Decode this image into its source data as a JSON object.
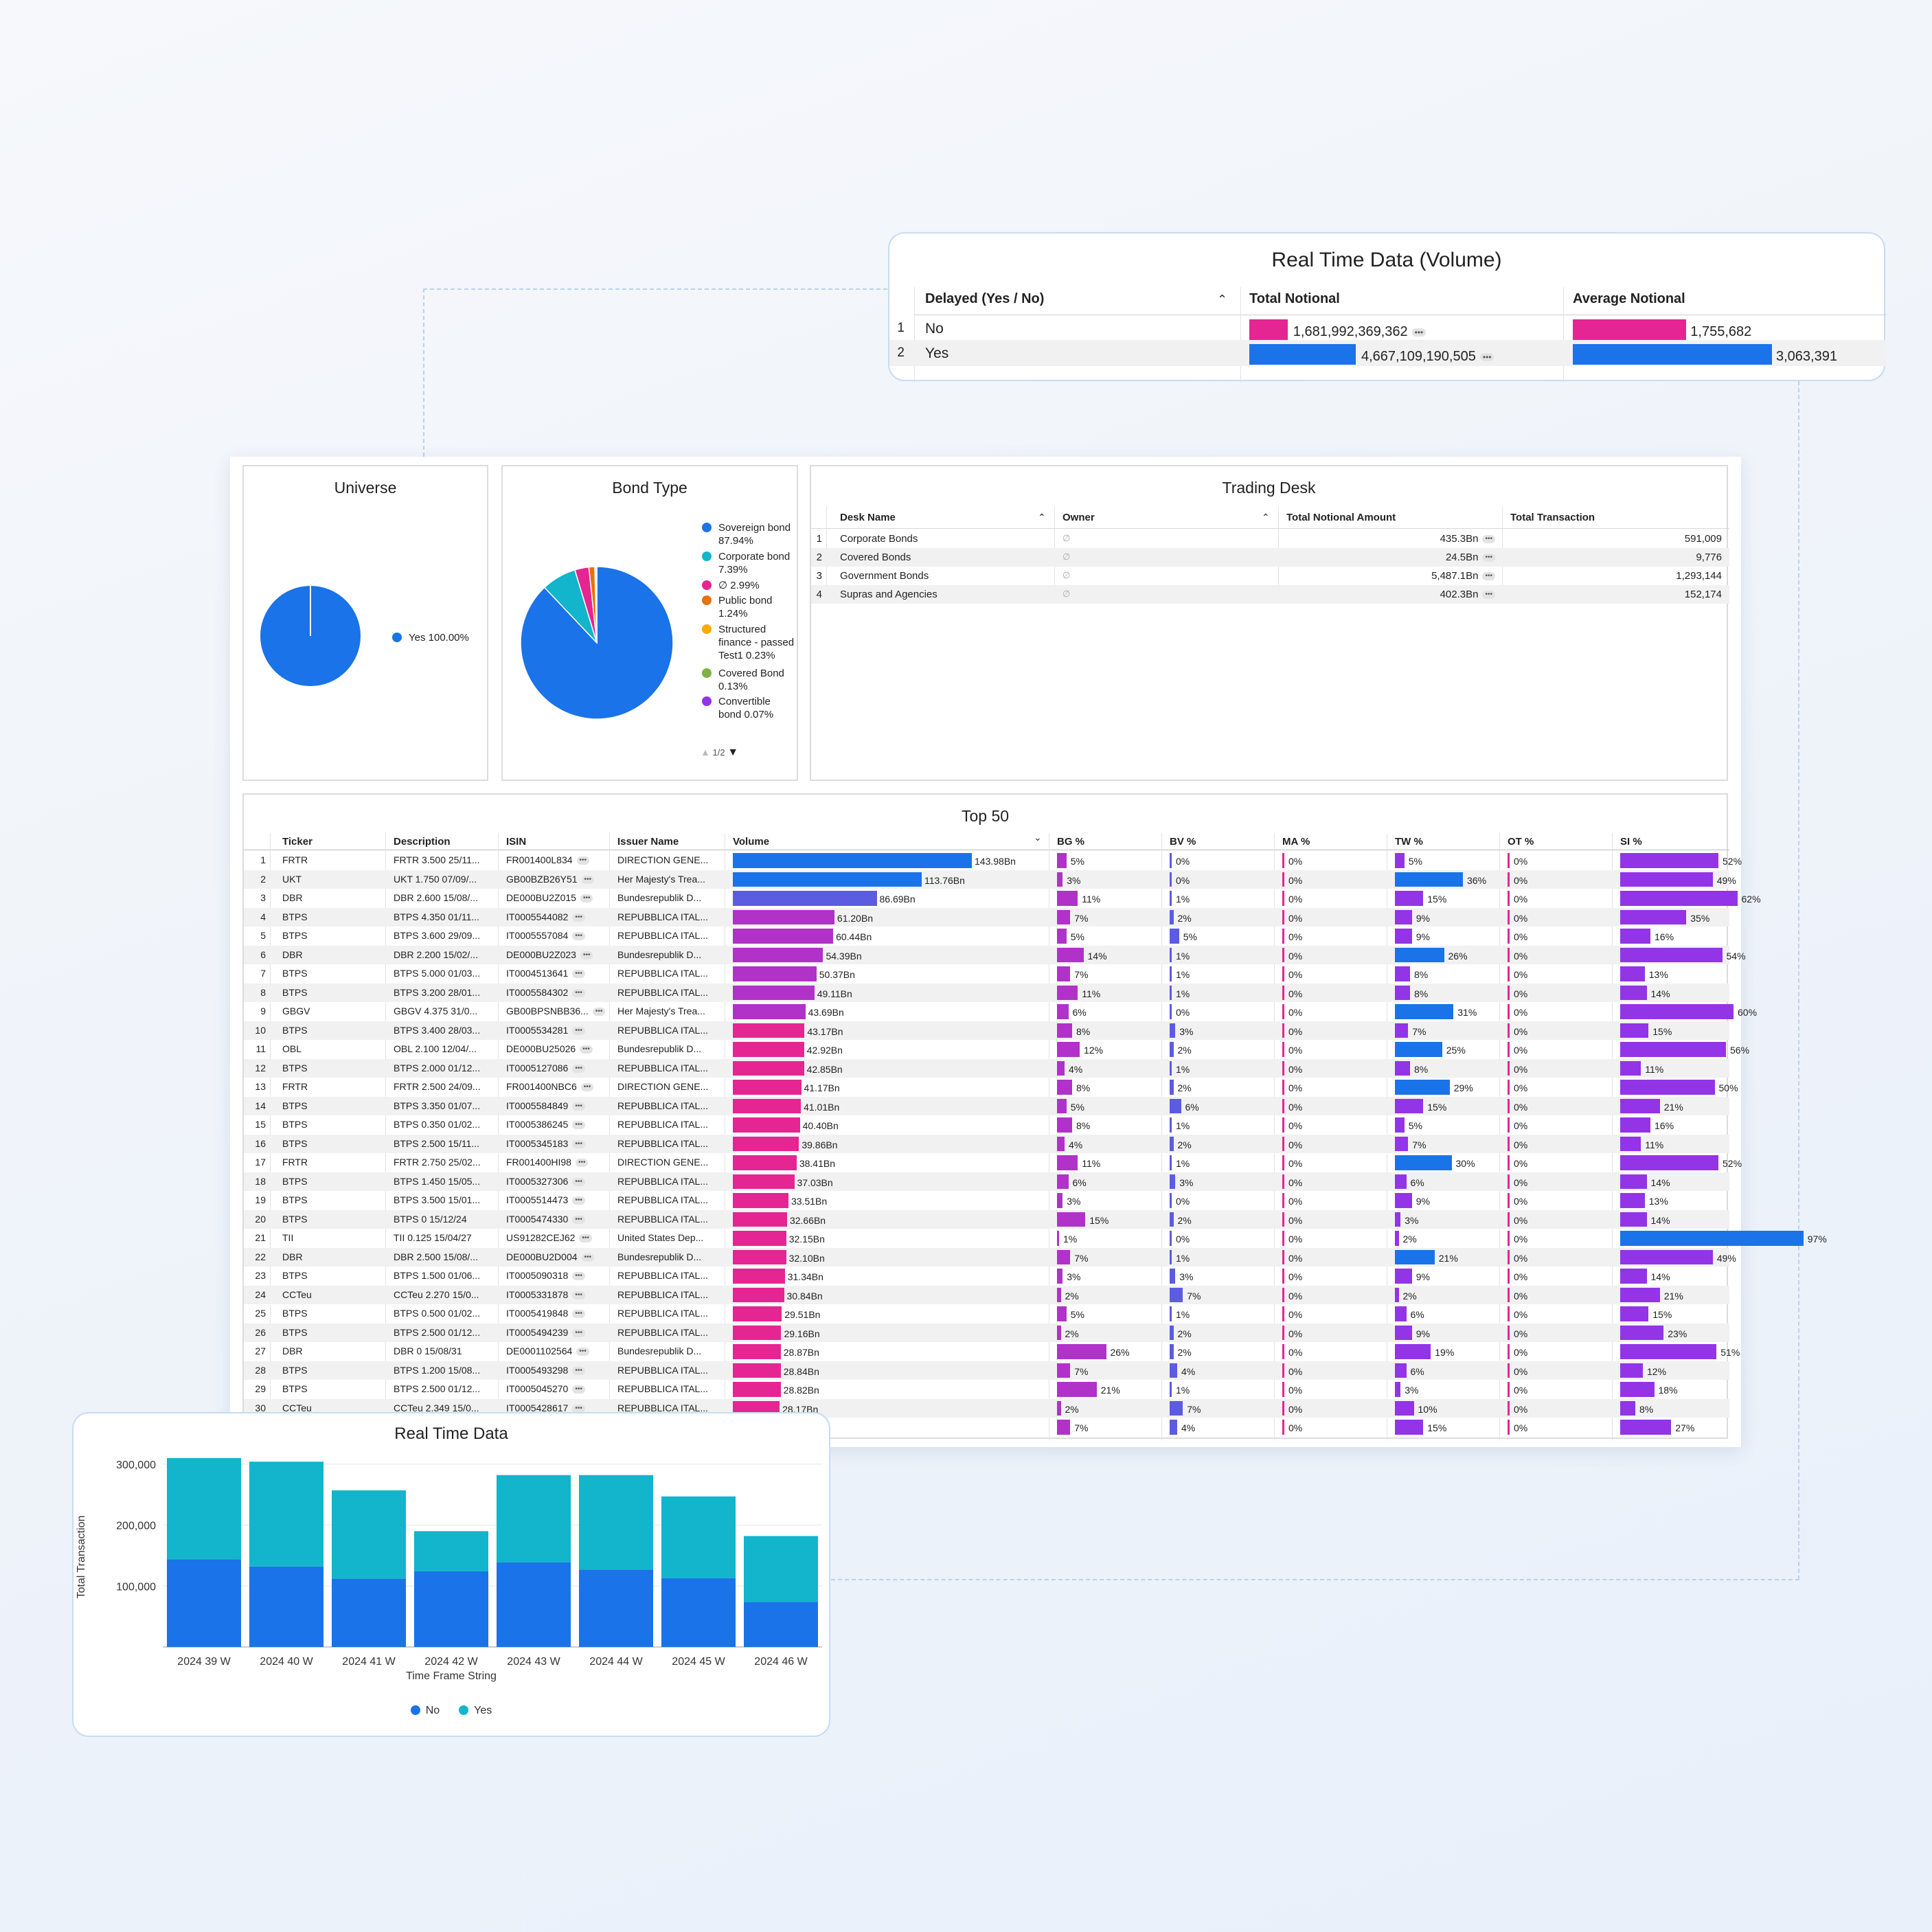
{
  "colors": {
    "blue": "#1a73e8",
    "magenta": "#e52592",
    "teal": "#12b5cb",
    "purple": "#9334e6",
    "indigo": "#5c5ce0",
    "violet": "#b032c8"
  },
  "realtime_volume": {
    "title": "Real Time Data (Volume)",
    "headers": [
      "Delayed (Yes / No)",
      "Total Notional",
      "Average Notional"
    ],
    "rows": [
      {
        "num": "1",
        "label": "No",
        "total": "1,681,992,369,362",
        "total_frac": 0.36,
        "avg": "1,755,682",
        "avg_frac": 0.57
      },
      {
        "num": "2",
        "label": "Yes",
        "total": "4,667,109,190,505",
        "total_frac": 1.0,
        "avg": "3,063,391",
        "avg_frac": 1.0
      }
    ],
    "sort_icon": "chevron-up-icon"
  },
  "universe": {
    "title": "Universe",
    "legend": [
      {
        "label": "Yes 100.00%",
        "color": "#1a73e8"
      }
    ],
    "chart_data": {
      "type": "pie",
      "labels": [
        "Yes"
      ],
      "values": [
        100.0
      ]
    }
  },
  "bond_type": {
    "title": "Bond Type",
    "legend": [
      {
        "label": "Sovereign bond 87.94%",
        "color": "#1a73e8"
      },
      {
        "label": "Corporate bond 7.39%",
        "color": "#12b5cb"
      },
      {
        "label": "∅ 2.99%",
        "color": "#e52592"
      },
      {
        "label": "Public bond 1.24%",
        "color": "#e8710a"
      },
      {
        "label": "Structured finance - passed Test1 0.23%",
        "color": "#f9ab00"
      },
      {
        "label": "Covered Bond 0.13%",
        "color": "#7cb342"
      },
      {
        "label": "Convertible bond 0.07%",
        "color": "#9334e6"
      }
    ],
    "pager": "1/2",
    "chart_data": {
      "type": "pie",
      "labels": [
        "Sovereign bond",
        "Corporate bond",
        "∅",
        "Public bond",
        "Structured finance - passed Test1",
        "Covered Bond",
        "Convertible bond"
      ],
      "values": [
        87.94,
        7.39,
        2.99,
        1.24,
        0.23,
        0.13,
        0.07
      ]
    }
  },
  "trading_desk": {
    "title": "Trading Desk",
    "headers": [
      "Desk Name",
      "Owner",
      "Total Notional Amount",
      "Total Transaction"
    ],
    "rows": [
      {
        "num": "1",
        "desk": "Corporate Bonds",
        "owner": "∅",
        "amount": "435.3Bn",
        "tx": "591,009"
      },
      {
        "num": "2",
        "desk": "Covered Bonds",
        "owner": "∅",
        "amount": "24.5Bn",
        "tx": "9,776"
      },
      {
        "num": "3",
        "desk": "Government Bonds",
        "owner": "∅",
        "amount": "5,487.1Bn",
        "tx": "1,293,144"
      },
      {
        "num": "4",
        "desk": "Supras and Agencies",
        "owner": "∅",
        "amount": "402.3Bn",
        "tx": "152,174"
      }
    ]
  },
  "top50": {
    "title": "Top 50",
    "headers": [
      "Ticker",
      "Description",
      "ISIN",
      "Issuer Name",
      "Volume",
      "BG %",
      "BV %",
      "MA %",
      "TW %",
      "OT %",
      "SI %"
    ],
    "volume_max": 143.98,
    "rows": [
      [
        "1",
        "FRTR",
        "FRTR 3.500 25/11...",
        "FR001400L834",
        "DIRECTION GENE...",
        143.98,
        "143.98Bn",
        5,
        0,
        0,
        5,
        0,
        52
      ],
      [
        "2",
        "UKT",
        "UKT 1.750 07/09/...",
        "GB00BZB26Y51",
        "Her Majesty's Trea...",
        113.76,
        "113.76Bn",
        3,
        0,
        0,
        36,
        0,
        49
      ],
      [
        "3",
        "DBR",
        "DBR 2.600 15/08/...",
        "DE000BU2Z015",
        "Bundesrepublik D...",
        86.69,
        "86.69Bn",
        11,
        1,
        0,
        15,
        0,
        62
      ],
      [
        "4",
        "BTPS",
        "BTPS 4.350 01/11...",
        "IT0005544082",
        "REPUBBLICA ITAL...",
        61.2,
        "61.20Bn",
        7,
        2,
        0,
        9,
        0,
        35
      ],
      [
        "5",
        "BTPS",
        "BTPS 3.600 29/09...",
        "IT0005557084",
        "REPUBBLICA ITAL...",
        60.44,
        "60.44Bn",
        5,
        5,
        0,
        9,
        0,
        16
      ],
      [
        "6",
        "DBR",
        "DBR 2.200 15/02/...",
        "DE000BU2Z023",
        "Bundesrepublik D...",
        54.39,
        "54.39Bn",
        14,
        1,
        0,
        26,
        0,
        54
      ],
      [
        "7",
        "BTPS",
        "BTPS 5.000 01/03...",
        "IT0004513641",
        "REPUBBLICA ITAL...",
        50.37,
        "50.37Bn",
        7,
        1,
        0,
        8,
        0,
        13
      ],
      [
        "8",
        "BTPS",
        "BTPS 3.200 28/01...",
        "IT0005584302",
        "REPUBBLICA ITAL...",
        49.11,
        "49.11Bn",
        11,
        1,
        0,
        8,
        0,
        14
      ],
      [
        "9",
        "GBGV",
        "GBGV 4.375 31/0...",
        "GB00BPSNBB36...",
        "Her Majesty's Trea...",
        43.69,
        "43.69Bn",
        6,
        0,
        0,
        31,
        0,
        60
      ],
      [
        "10",
        "BTPS",
        "BTPS 3.400 28/03...",
        "IT0005534281",
        "REPUBBLICA ITAL...",
        43.17,
        "43.17Bn",
        8,
        3,
        0,
        7,
        0,
        15
      ],
      [
        "11",
        "OBL",
        "OBL 2.100 12/04/...",
        "DE000BU25026",
        "Bundesrepublik D...",
        42.92,
        "42.92Bn",
        12,
        2,
        0,
        25,
        0,
        56
      ],
      [
        "12",
        "BTPS",
        "BTPS 2.000 01/12...",
        "IT0005127086",
        "REPUBBLICA ITAL...",
        42.85,
        "42.85Bn",
        4,
        1,
        0,
        8,
        0,
        11
      ],
      [
        "13",
        "FRTR",
        "FRTR 2.500 24/09...",
        "FR001400NBC6",
        "DIRECTION GENE...",
        41.17,
        "41.17Bn",
        8,
        2,
        0,
        29,
        0,
        50
      ],
      [
        "14",
        "BTPS",
        "BTPS 3.350 01/07...",
        "IT0005584849",
        "REPUBBLICA ITAL...",
        41.01,
        "41.01Bn",
        5,
        6,
        0,
        15,
        0,
        21
      ],
      [
        "15",
        "BTPS",
        "BTPS 0.350 01/02...",
        "IT0005386245",
        "REPUBBLICA ITAL...",
        40.4,
        "40.40Bn",
        8,
        1,
        0,
        5,
        0,
        16
      ],
      [
        "16",
        "BTPS",
        "BTPS 2.500 15/11...",
        "IT0005345183",
        "REPUBBLICA ITAL...",
        39.86,
        "39.86Bn",
        4,
        2,
        0,
        7,
        0,
        11
      ],
      [
        "17",
        "FRTR",
        "FRTR 2.750 25/02...",
        "FR001400HI98",
        "DIRECTION GENE...",
        38.41,
        "38.41Bn",
        11,
        1,
        0,
        30,
        0,
        52
      ],
      [
        "18",
        "BTPS",
        "BTPS 1.450 15/05...",
        "IT0005327306",
        "REPUBBLICA ITAL...",
        37.03,
        "37.03Bn",
        6,
        3,
        0,
        6,
        0,
        14
      ],
      [
        "19",
        "BTPS",
        "BTPS 3.500 15/01...",
        "IT0005514473",
        "REPUBBLICA ITAL...",
        33.51,
        "33.51Bn",
        3,
        0,
        0,
        9,
        0,
        13
      ],
      [
        "20",
        "BTPS",
        "BTPS 0 15/12/24",
        "IT0005474330",
        "REPUBBLICA ITAL...",
        32.66,
        "32.66Bn",
        15,
        2,
        0,
        3,
        0,
        14
      ],
      [
        "21",
        "TII",
        "TII 0.125 15/04/27",
        "US91282CEJ62",
        "United States Dep...",
        32.15,
        "32.15Bn",
        1,
        0,
        0,
        2,
        0,
        97
      ],
      [
        "22",
        "DBR",
        "DBR 2.500 15/08/...",
        "DE000BU2D004",
        "Bundesrepublik D...",
        32.1,
        "32.10Bn",
        7,
        1,
        0,
        21,
        0,
        49
      ],
      [
        "23",
        "BTPS",
        "BTPS 1.500 01/06...",
        "IT0005090318",
        "REPUBBLICA ITAL...",
        31.34,
        "31.34Bn",
        3,
        3,
        0,
        9,
        0,
        14
      ],
      [
        "24",
        "CCTeu",
        "CCTeu 2.270 15/0...",
        "IT0005331878",
        "REPUBBLICA ITAL...",
        30.84,
        "30.84Bn",
        2,
        7,
        0,
        2,
        0,
        21
      ],
      [
        "25",
        "BTPS",
        "BTPS 0.500 01/02...",
        "IT0005419848",
        "REPUBBLICA ITAL...",
        29.51,
        "29.51Bn",
        5,
        1,
        0,
        6,
        0,
        15
      ],
      [
        "26",
        "BTPS",
        "BTPS 2.500 01/12...",
        "IT0005494239",
        "REPUBBLICA ITAL...",
        29.16,
        "29.16Bn",
        2,
        2,
        0,
        9,
        0,
        23
      ],
      [
        "27",
        "DBR",
        "DBR 0 15/08/31",
        "DE0001102564",
        "Bundesrepublik D...",
        28.87,
        "28.87Bn",
        26,
        2,
        0,
        19,
        0,
        51
      ],
      [
        "28",
        "BTPS",
        "BTPS 1.200 15/08...",
        "IT0005493298",
        "REPUBBLICA ITAL...",
        28.84,
        "28.84Bn",
        7,
        4,
        0,
        6,
        0,
        12
      ],
      [
        "29",
        "BTPS",
        "BTPS 2.500 01/12...",
        "IT0005045270",
        "REPUBBLICA ITAL...",
        28.82,
        "28.82Bn",
        21,
        1,
        0,
        3,
        0,
        18
      ],
      [
        "30",
        "CCTeu",
        "CCTeu 2.349 15/0...",
        "IT0005428617",
        "REPUBBLICA ITAL...",
        28.17,
        "28.17Bn",
        2,
        7,
        0,
        10,
        0,
        8
      ],
      [
        "",
        "",
        "",
        "",
        "",
        0,
        "",
        7,
        4,
        0,
        15,
        0,
        27
      ]
    ]
  },
  "realtime_chart": {
    "title": "Real Time Data",
    "chart_data": {
      "type": "bar",
      "stacked": true,
      "title": "Real Time Data",
      "xlabel": "Time Frame String",
      "ylabel": "Total Transaction",
      "categories": [
        "2024 39 W",
        "2024 40 W",
        "2024 41 W",
        "2024 42 W",
        "2024 43 W",
        "2024 44 W",
        "2024 45 W",
        "2024 46 W"
      ],
      "series": [
        {
          "name": "No",
          "color": "#1a73e8",
          "values": [
            144000,
            132000,
            112000,
            124000,
            139000,
            127000,
            113000,
            74000
          ]
        },
        {
          "name": "Yes",
          "color": "#12b5cb",
          "values": [
            166000,
            172000,
            145000,
            66000,
            143000,
            155000,
            134000,
            108000
          ]
        }
      ],
      "yticks": [
        "100,000",
        "200,000",
        "300,000"
      ],
      "ylim": [
        0,
        320000
      ]
    }
  }
}
